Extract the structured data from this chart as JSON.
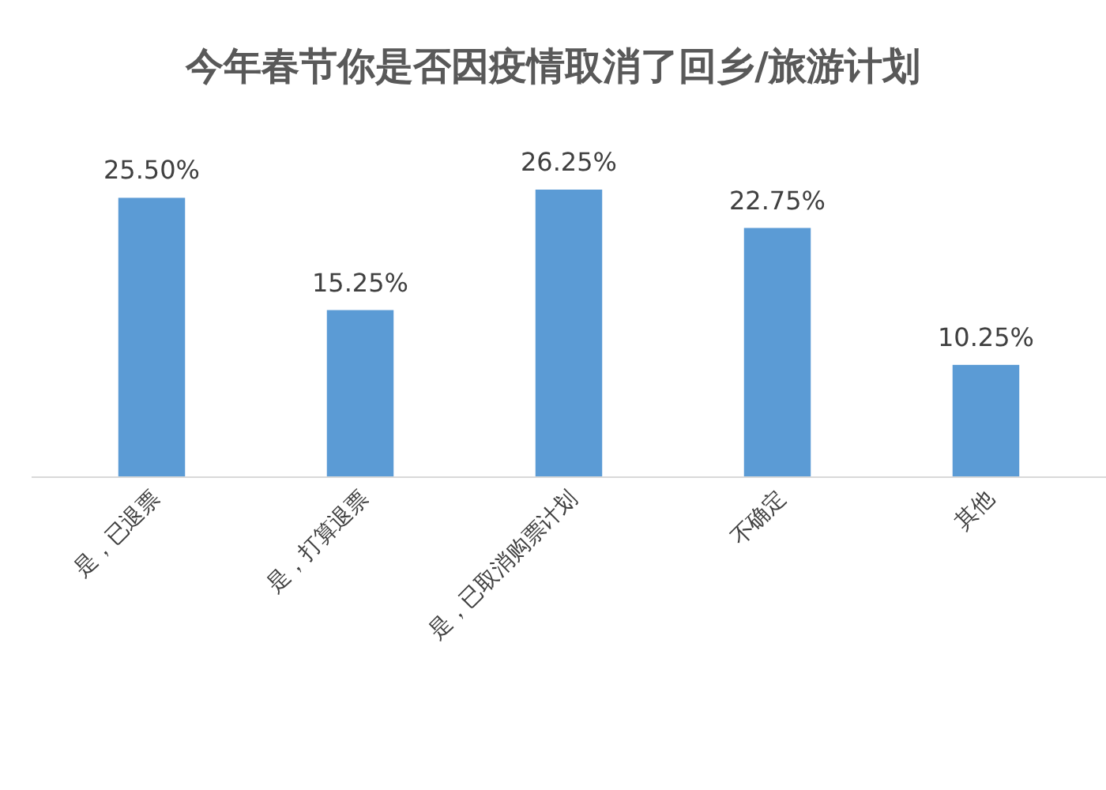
{
  "chart_data": {
    "type": "bar",
    "title": "今年春节你是否因疫情取消了回乡/旅游计划",
    "categories": [
      "是，已退票",
      "是，打算退票",
      "是，已取消购票计划",
      "不确定",
      "其他"
    ],
    "values": [
      25.5,
      15.25,
      26.25,
      22.75,
      10.25
    ],
    "value_labels": [
      "25.50%",
      "15.25%",
      "26.25%",
      "22.75%",
      "10.25%"
    ],
    "color": "#5b9bd5"
  }
}
